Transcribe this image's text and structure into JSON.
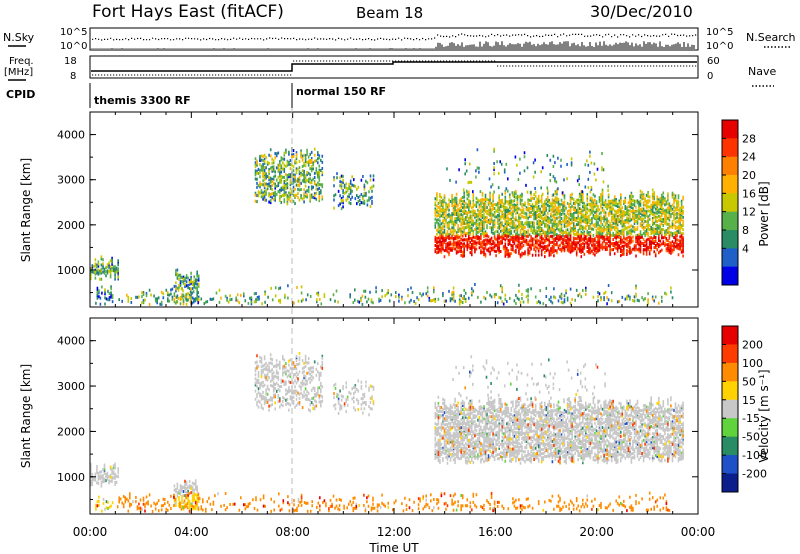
{
  "header": {
    "station": "Fort Hays East (fitACF)",
    "beam": "Beam 18",
    "date": "30/Dec/2010"
  },
  "top_panels": {
    "nsky_label": "N.Sky",
    "nsky_ticks": [
      "10^5",
      "10^0"
    ],
    "nsearch_label": "N.Search",
    "nsearch_ticks": [
      "10^5",
      "10^0"
    ],
    "freq_label": "Freq.",
    "freq_unit": "[MHz]",
    "freq_ticks": [
      "18",
      "8"
    ],
    "nave_label": "Nave",
    "nave_ticks": [
      "60",
      "0"
    ],
    "cpid_label": "CPID",
    "cpid_modes": [
      "themis 3300 RF",
      "normal 150 RF"
    ]
  },
  "chart_data": [
    {
      "type": "heatmap",
      "name": "power",
      "ylabel": "Slant Range [km]",
      "xlabel": "",
      "xlim": [
        0,
        24
      ],
      "ylim": [
        180,
        4500
      ],
      "yticks": [
        "1000",
        "2000",
        "3000",
        "4000"
      ],
      "colorbar": {
        "label": "Power [dB]",
        "ticks": [
          "28",
          "24",
          "20",
          "16",
          "12",
          "8",
          "4"
        ],
        "range": [
          0,
          30
        ],
        "colors": [
          "#0000e6",
          "#1e5fc8",
          "#2a8c64",
          "#57b04a",
          "#c8c800",
          "#ffb000",
          "#ff7f00",
          "#ff3300",
          "#e60000"
        ]
      },
      "regions": [
        {
          "t0": 0.0,
          "t1": 1.1,
          "r0": 850,
          "r1": 1150,
          "density": 0.7,
          "level": 0.3
        },
        {
          "t0": 0.2,
          "t1": 0.9,
          "r0": 250,
          "r1": 500,
          "density": 0.35,
          "level": 0.25
        },
        {
          "t0": 3.3,
          "t1": 4.3,
          "r0": 600,
          "r1": 850,
          "density": 0.6,
          "level": 0.3
        },
        {
          "t0": 3.3,
          "t1": 4.3,
          "r0": 250,
          "r1": 500,
          "density": 0.5,
          "level": 0.4
        },
        {
          "t0": 6.5,
          "t1": 9.2,
          "r0": 2500,
          "r1": 3550,
          "density": 0.45,
          "level": 0.35
        },
        {
          "t0": 9.6,
          "t1": 11.2,
          "r0": 2400,
          "r1": 3000,
          "density": 0.3,
          "level": 0.3
        },
        {
          "t0": 13.6,
          "t1": 23.4,
          "r0": 1350,
          "r1": 2600,
          "density": 0.65,
          "level": 0.65
        },
        {
          "t0": 14.0,
          "t1": 20.5,
          "r0": 2700,
          "r1": 3500,
          "density": 0.06,
          "level": 0.3
        },
        {
          "t0": 1.0,
          "t1": 23.0,
          "r0": 220,
          "r1": 500,
          "density": 0.18,
          "level": 0.35
        }
      ]
    },
    {
      "type": "heatmap",
      "name": "velocity",
      "ylabel": "Slant Range [km]",
      "xlabel": "Time UT",
      "xlim": [
        0,
        24
      ],
      "ylim": [
        180,
        4500
      ],
      "xticks": [
        "00:00",
        "04:00",
        "08:00",
        "12:00",
        "16:00",
        "20:00",
        "00:00"
      ],
      "yticks": [
        "1000",
        "2000",
        "3000",
        "4000"
      ],
      "colorbar": {
        "label": "Velocity [m s⁻¹]",
        "ticks": [
          "200",
          "100",
          "50",
          "15",
          "-15",
          "-50",
          "-100",
          "-200"
        ],
        "colors": [
          "#0a1e8c",
          "#1e50c8",
          "#2a8c64",
          "#5fd23c",
          "#c8c8c8",
          "#ffd200",
          "#ff8c00",
          "#ff3c00",
          "#e60000"
        ]
      },
      "regions": [
        {
          "t0": 0.0,
          "t1": 1.1,
          "r0": 850,
          "r1": 1150,
          "density": 0.6,
          "level": 0.5
        },
        {
          "t0": 0.2,
          "t1": 0.9,
          "r0": 250,
          "r1": 500,
          "density": 0.35,
          "level": 0.65
        },
        {
          "t0": 3.3,
          "t1": 4.3,
          "r0": 600,
          "r1": 850,
          "density": 0.6,
          "level": 0.5
        },
        {
          "t0": 3.3,
          "t1": 4.3,
          "r0": 250,
          "r1": 500,
          "density": 0.5,
          "level": 0.65
        },
        {
          "t0": 6.5,
          "t1": 9.2,
          "r0": 2500,
          "r1": 3550,
          "density": 0.35,
          "level": 0.5
        },
        {
          "t0": 9.6,
          "t1": 11.2,
          "r0": 2400,
          "r1": 3000,
          "density": 0.25,
          "level": 0.5
        },
        {
          "t0": 13.6,
          "t1": 23.4,
          "r0": 1350,
          "r1": 2600,
          "density": 0.65,
          "level": 0.5
        },
        {
          "t0": 14.0,
          "t1": 20.5,
          "r0": 2700,
          "r1": 3500,
          "density": 0.05,
          "level": 0.5
        },
        {
          "t0": 1.0,
          "t1": 23.0,
          "r0": 220,
          "r1": 500,
          "density": 0.2,
          "level": 0.75
        }
      ]
    }
  ]
}
